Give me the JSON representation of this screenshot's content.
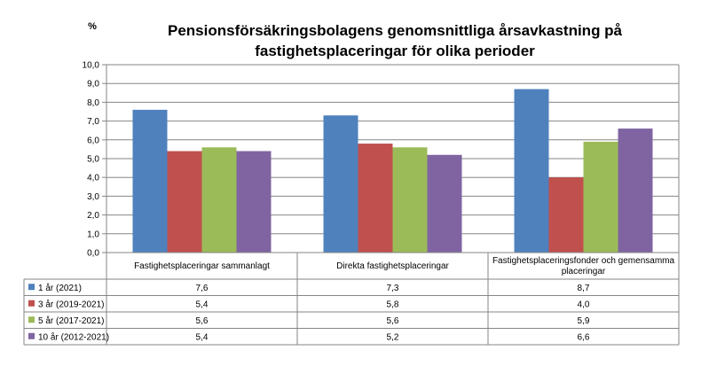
{
  "chart_data": {
    "type": "bar",
    "title_line1": "Pensionsförsäkringsbolagens genomsnittliga årsavkastning på",
    "title_line2": "fastighetsplaceringar för olika perioder",
    "ylabel": "%",
    "ylim": [
      0,
      10
    ],
    "ytick_step": 1,
    "yticks": [
      "0,0",
      "1,0",
      "2,0",
      "3,0",
      "4,0",
      "5,0",
      "6,0",
      "7,0",
      "8,0",
      "9,0",
      "10,0"
    ],
    "grid": true,
    "legend_placement": "data-table-left",
    "categories": [
      [
        "Fastighetsplaceringar sammanlagt"
      ],
      [
        "Direkta fastighetsplaceringar"
      ],
      [
        "Fastighetsplaceringsfonder och gemensamma",
        "placeringar"
      ]
    ],
    "series": [
      {
        "name": "1 år (2021)",
        "color": "#4f81bd",
        "values": [
          7.6,
          7.3,
          8.7
        ],
        "labels": [
          "7,6",
          "7,3",
          "8,7"
        ]
      },
      {
        "name": "3 år (2019-2021)",
        "color": "#c0504d",
        "values": [
          5.4,
          5.8,
          4.0
        ],
        "labels": [
          "5,4",
          "5,8",
          "4,0"
        ]
      },
      {
        "name": "5 år (2017-2021)",
        "color": "#9bbb59",
        "values": [
          5.6,
          5.6,
          5.9
        ],
        "labels": [
          "5,6",
          "5,6",
          "5,9"
        ]
      },
      {
        "name": "10 år (2012-2021)",
        "color": "#8064a2",
        "values": [
          5.4,
          5.2,
          6.6
        ],
        "labels": [
          "5,4",
          "5,2",
          "6,6"
        ]
      }
    ]
  }
}
